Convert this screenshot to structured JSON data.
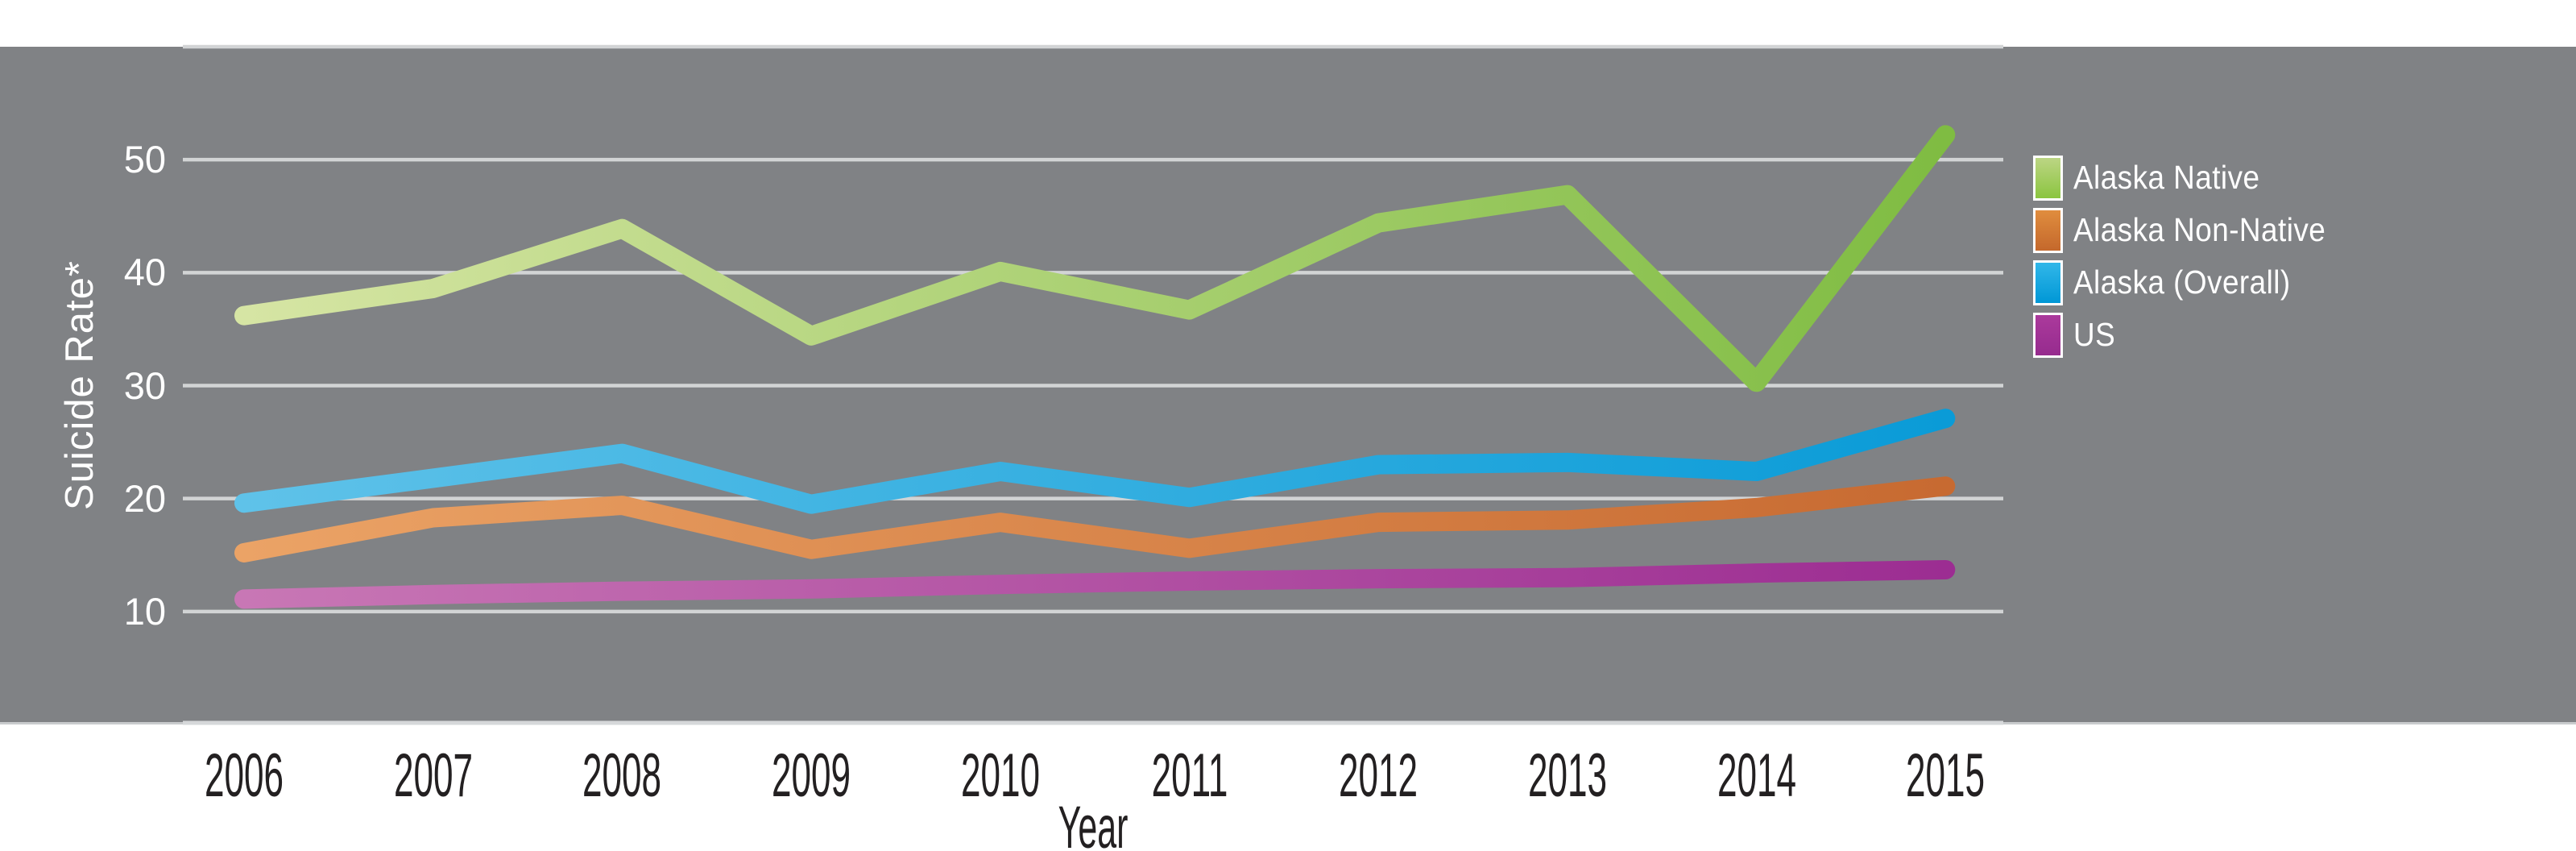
{
  "figure": {
    "panel_color": "#808285",
    "background_color": "#ffffff",
    "gridline_color": "#d2d4d5",
    "axis_edge_color": "#c9cbcd",
    "axis_line_color": "#d6d8da",
    "text_color_dark": "#232021",
    "text_color_light": "#ffffff"
  },
  "chart_data": {
    "type": "line",
    "title": "",
    "xlabel": "Year",
    "ylabel": "Suicide Rate*",
    "x": [
      2006,
      2007,
      2008,
      2009,
      2010,
      2011,
      2012,
      2013,
      2014,
      2015
    ],
    "x_tick_labels": [
      "2006",
      "2007",
      "2008",
      "2009",
      "2010",
      "2011",
      "2012",
      "2013",
      "2014",
      "2015"
    ],
    "ylim": [
      0,
      60
    ],
    "y_ticks": [
      {
        "value": 50,
        "label": "50"
      },
      {
        "value": 40,
        "label": "40"
      },
      {
        "value": 30,
        "label": "30"
      },
      {
        "value": 20,
        "label": "20"
      },
      {
        "value": 10,
        "label": "10"
      }
    ],
    "gridline_values": [
      10,
      20,
      30,
      40,
      50,
      60
    ],
    "grid": "on",
    "legend_position": "right",
    "line_width": 24,
    "series": [
      {
        "name": "Alaska Native",
        "values": [
          36.2,
          38.6,
          43.9,
          34.4,
          40.1,
          36.7,
          44.4,
          46.9,
          30.3,
          52.2
        ],
        "line_color_left": "#d6e5a4",
        "line_color_right": "#7fbc42",
        "swatch_top": "#bcd584",
        "swatch_bottom": "#8bc53f"
      },
      {
        "name": "Alaska Non-Native",
        "values": [
          15.2,
          18.3,
          19.4,
          15.5,
          17.9,
          15.6,
          17.9,
          18.1,
          19.2,
          21.1
        ],
        "line_color_left": "#eba366",
        "line_color_right": "#c76a31",
        "swatch_top": "#e08d3e",
        "swatch_bottom": "#c4682c"
      },
      {
        "name": "Alaska (Overall)",
        "values": [
          19.6,
          21.8,
          24.0,
          19.5,
          22.4,
          20.1,
          23.0,
          23.2,
          22.4,
          27.1
        ],
        "line_color_left": "#5fc2e9",
        "line_color_right": "#0a9bd7",
        "swatch_top": "#31b7e9",
        "swatch_bottom": "#0097d6"
      },
      {
        "name": "US",
        "values": [
          11.1,
          11.5,
          11.8,
          12.0,
          12.4,
          12.7,
          12.9,
          13.0,
          13.4,
          13.7
        ],
        "line_color_left": "#c877b5",
        "line_color_right": "#9c2d92",
        "swatch_top": "#ab3a9c",
        "swatch_bottom": "#962b8e"
      }
    ]
  },
  "legend": {
    "items": [
      "Alaska Native",
      "Alaska Non-Native",
      "Alaska (Overall)",
      "US"
    ]
  }
}
